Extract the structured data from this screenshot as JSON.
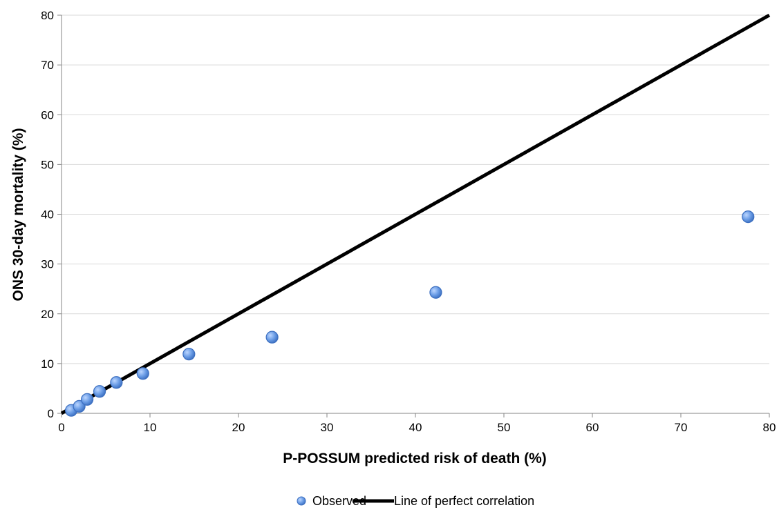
{
  "chart_data": {
    "type": "scatter",
    "xlabel": "P-POSSUM predicted risk of death (%)",
    "ylabel": "ONS 30-day mortality (%)",
    "xlim": [
      0,
      80
    ],
    "ylim": [
      0,
      80
    ],
    "xticks": [
      0,
      10,
      20,
      30,
      40,
      50,
      60,
      70,
      80
    ],
    "yticks": [
      0,
      10,
      20,
      30,
      40,
      50,
      60,
      70,
      80
    ],
    "grid": "horizontal",
    "legend_position": "bottom",
    "series": [
      {
        "name": "Observed",
        "kind": "scatter",
        "color": "#5b8fd9",
        "points": [
          {
            "x": 1.1,
            "y": 0.6
          },
          {
            "x": 2.0,
            "y": 1.4
          },
          {
            "x": 2.9,
            "y": 2.8
          },
          {
            "x": 4.3,
            "y": 4.4
          },
          {
            "x": 6.2,
            "y": 6.2
          },
          {
            "x": 9.2,
            "y": 8.0
          },
          {
            "x": 14.4,
            "y": 11.9
          },
          {
            "x": 23.8,
            "y": 15.3
          },
          {
            "x": 42.3,
            "y": 24.3
          },
          {
            "x": 77.6,
            "y": 39.5
          }
        ]
      },
      {
        "name": "Line of perfect correlation",
        "kind": "line",
        "color": "#000000",
        "points": [
          {
            "x": 0,
            "y": 0
          },
          {
            "x": 80,
            "y": 80
          }
        ]
      }
    ]
  }
}
